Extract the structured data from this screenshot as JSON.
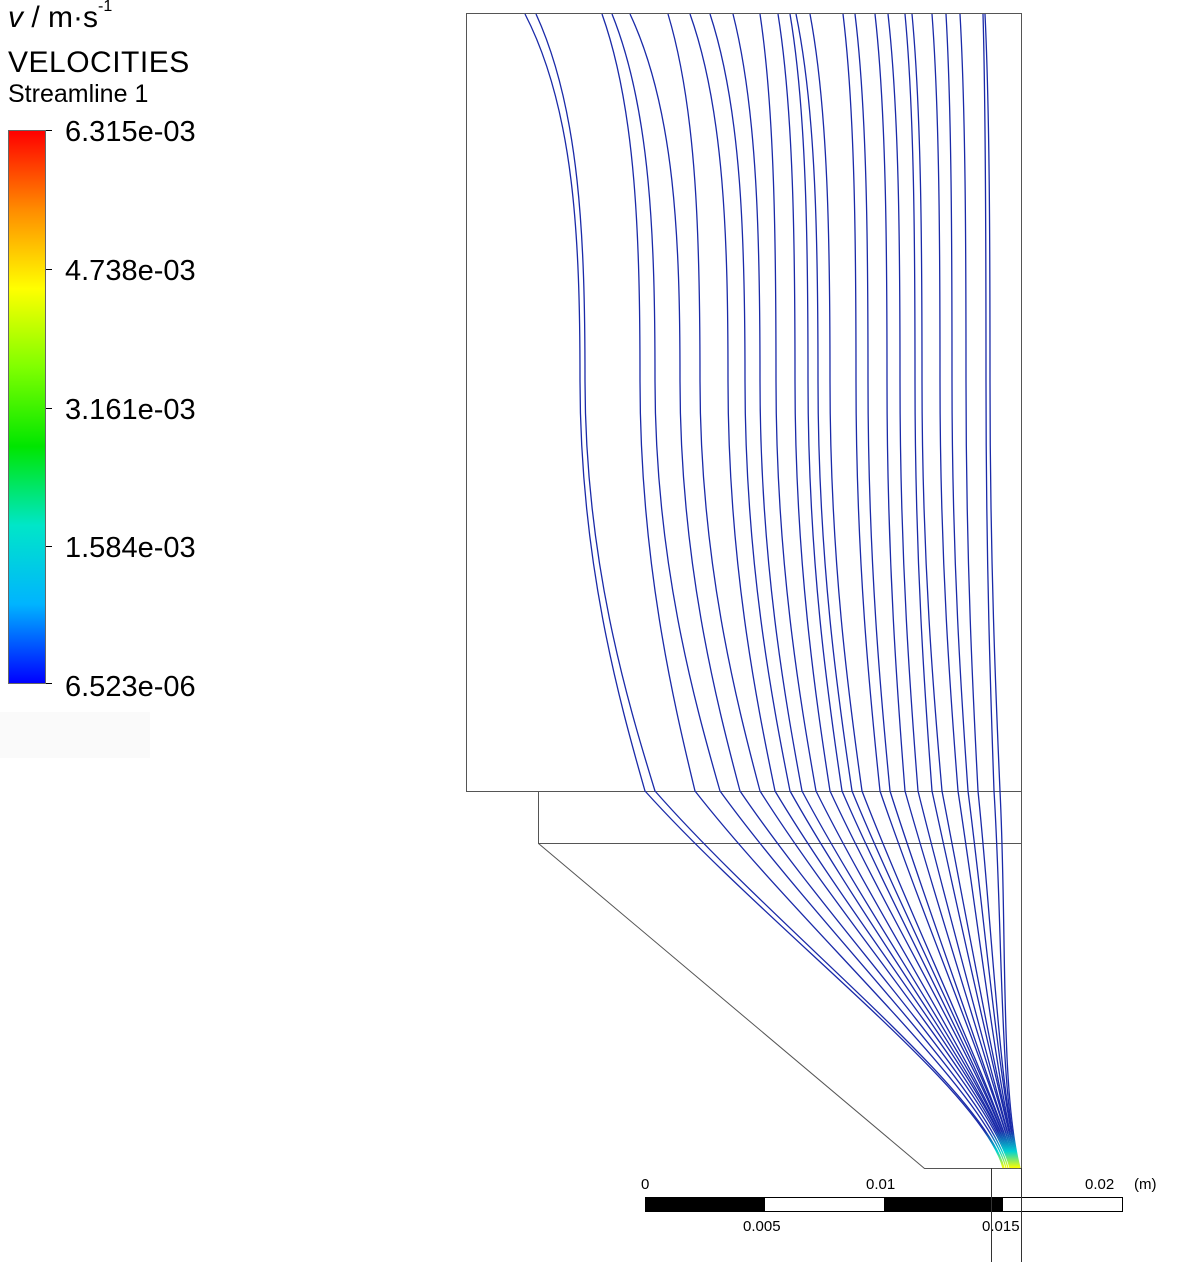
{
  "legend": {
    "unit_symbol": "v",
    "unit_text": "/ m·s",
    "unit_exponent": "-1",
    "variable": "VELOCITIES",
    "name": "Streamline 1",
    "labels": [
      "6.315e-03",
      "4.738e-03",
      "3.161e-03",
      "1.584e-03",
      "6.523e-06"
    ],
    "colors": [
      "#ff0000",
      "#ff8c00",
      "#ffff00",
      "#7fff00",
      "#00e600",
      "#00e6c8",
      "#00b4ff",
      "#0000ff"
    ]
  },
  "scale_bar": {
    "top_labels": [
      "0",
      "0.01",
      "0.02"
    ],
    "unit": "(m)",
    "bottom_labels": [
      "0.005",
      "0.015"
    ]
  },
  "streamlines": {
    "color_far": "#1a2aa8",
    "color_near": "#ffff00"
  }
}
